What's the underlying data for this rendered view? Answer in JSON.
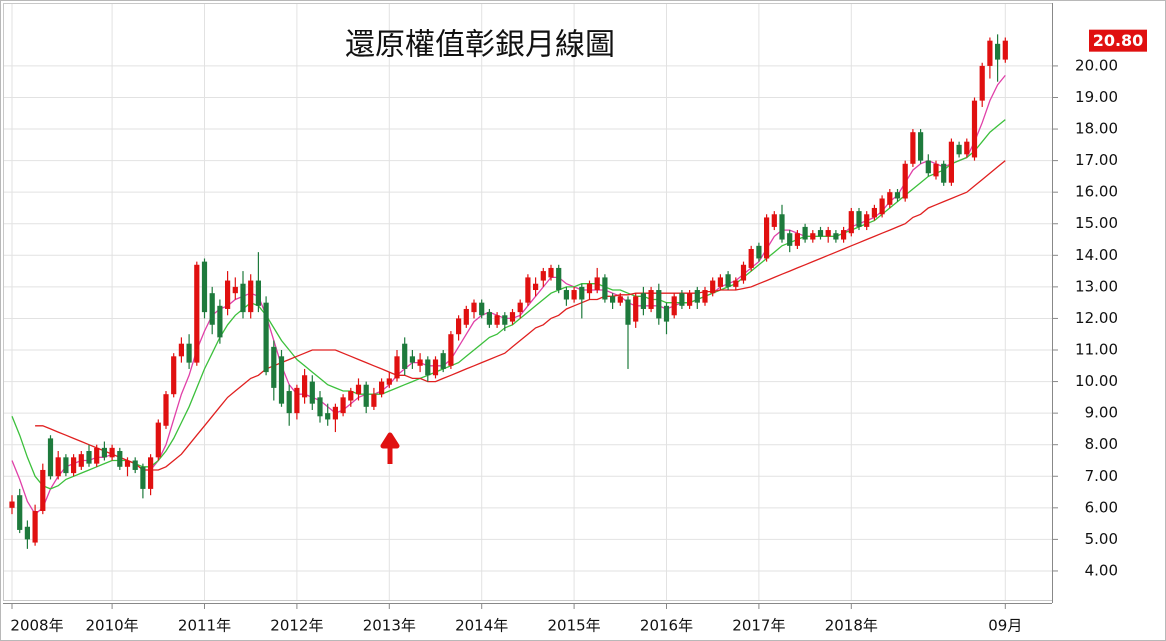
{
  "chart_data": {
    "type": "candlestick",
    "title": "還原權值彰銀月線圖",
    "categories": [
      "2008年",
      null,
      null,
      null,
      null,
      null,
      null,
      null,
      null,
      null,
      null,
      null,
      null,
      "2010年",
      null,
      null,
      null,
      null,
      null,
      null,
      null,
      null,
      null,
      null,
      null,
      "2011年",
      null,
      null,
      null,
      null,
      null,
      null,
      null,
      null,
      null,
      null,
      null,
      "2012年",
      null,
      null,
      null,
      null,
      null,
      null,
      null,
      null,
      null,
      null,
      null,
      "2013年",
      null,
      null,
      null,
      null,
      null,
      null,
      null,
      null,
      null,
      null,
      null,
      "2014年",
      null,
      null,
      null,
      null,
      null,
      null,
      null,
      null,
      null,
      null,
      null,
      "2015年",
      null,
      null,
      null,
      null,
      null,
      null,
      null,
      null,
      null,
      null,
      null,
      "2016年",
      null,
      null,
      null,
      null,
      null,
      null,
      null,
      null,
      null,
      null,
      null,
      "2017年",
      null,
      null,
      null,
      null,
      null,
      null,
      null,
      null,
      null,
      null,
      null,
      "2018年",
      null,
      null,
      null,
      null,
      null,
      null,
      null,
      null,
      null,
      null,
      null,
      null,
      null,
      null,
      null,
      null,
      null,
      null,
      null,
      "09月"
    ],
    "open": [
      6.0,
      6.4,
      5.4,
      4.9,
      5.9,
      8.2,
      7.0,
      7.6,
      7.1,
      7.3,
      7.8,
      7.4,
      7.9,
      7.6,
      7.8,
      7.3,
      7.5,
      7.3,
      6.6,
      7.6,
      8.6,
      9.6,
      10.8,
      11.2,
      10.6,
      13.8,
      12.8,
      12.4,
      12.3,
      12.8,
      13.1,
      12.2,
      13.2,
      12.5,
      11.1,
      10.8,
      9.7,
      9.0,
      9.5,
      10.0,
      9.5,
      9.0,
      8.8,
      9.0,
      9.4,
      9.6,
      9.9,
      9.2,
      9.6,
      9.9,
      10.1,
      11.2,
      10.8,
      10.5,
      10.7,
      10.2,
      10.9,
      10.5,
      11.5,
      11.8,
      12.2,
      12.5,
      12.2,
      11.8,
      12.1,
      11.9,
      12.2,
      12.5,
      12.9,
      13.2,
      13.3,
      13.6,
      12.9,
      12.6,
      13.0,
      12.8,
      12.9,
      13.3,
      12.7,
      12.5,
      12.6,
      11.9,
      12.8,
      12.3,
      12.9,
      12.4,
      12.1,
      12.8,
      12.4,
      12.9,
      12.5,
      12.8,
      13.0,
      13.4,
      13.0,
      13.2,
      13.6,
      14.3,
      13.9,
      14.9,
      15.3,
      14.7,
      14.3,
      14.9,
      14.5,
      14.8,
      14.6,
      14.7,
      14.5,
      14.7,
      15.4,
      14.9,
      15.2,
      15.3,
      15.6,
      16.0,
      15.8,
      16.9,
      17.9,
      17.0,
      16.5,
      16.9,
      16.3,
      17.5,
      17.2,
      17.1,
      18.9,
      20.0,
      20.7,
      20.2
    ],
    "high": [
      6.4,
      6.6,
      5.6,
      6.1,
      7.4,
      8.3,
      7.8,
      7.7,
      7.7,
      7.8,
      8.0,
      8.0,
      8.1,
      8.0,
      7.9,
      7.6,
      7.6,
      7.4,
      7.7,
      8.8,
      9.7,
      10.9,
      11.4,
      11.5,
      13.8,
      13.9,
      13.0,
      12.6,
      13.5,
      13.3,
      13.5,
      13.4,
      14.1,
      12.7,
      11.3,
      11.0,
      9.9,
      9.9,
      10.4,
      10.2,
      9.7,
      9.3,
      9.3,
      9.6,
      9.8,
      10.1,
      10.0,
      9.8,
      10.1,
      10.3,
      11.0,
      11.4,
      11.0,
      10.9,
      10.8,
      10.8,
      11.0,
      11.6,
      12.1,
      12.4,
      12.6,
      12.6,
      12.3,
      12.2,
      12.2,
      12.3,
      12.6,
      13.4,
      13.3,
      13.6,
      13.7,
      13.7,
      13.0,
      13.0,
      13.1,
      13.2,
      13.6,
      13.4,
      12.8,
      12.8,
      12.7,
      12.8,
      13.0,
      13.0,
      13.1,
      12.5,
      12.8,
      12.9,
      12.9,
      13.0,
      13.0,
      13.3,
      13.4,
      13.5,
      13.3,
      13.8,
      14.3,
      14.4,
      15.3,
      15.4,
      15.6,
      14.8,
      14.8,
      15.0,
      14.8,
      14.9,
      14.9,
      14.8,
      14.9,
      15.5,
      15.5,
      15.4,
      15.6,
      15.9,
      16.1,
      16.1,
      17.0,
      18.0,
      18.0,
      17.2,
      17.0,
      17.0,
      17.7,
      17.6,
      17.7,
      19.0,
      20.1,
      20.9,
      21.0,
      20.9
    ],
    "low": [
      5.8,
      5.2,
      4.7,
      4.8,
      5.8,
      6.9,
      6.9,
      7.0,
      7.0,
      7.2,
      7.3,
      7.3,
      7.5,
      7.5,
      7.2,
      7.0,
      7.1,
      6.3,
      6.4,
      7.5,
      8.5,
      9.5,
      10.6,
      10.4,
      10.5,
      12.0,
      11.5,
      11.2,
      12.1,
      12.6,
      12.0,
      12.0,
      12.2,
      10.2,
      9.4,
      9.2,
      8.6,
      8.8,
      9.3,
      9.1,
      8.7,
      8.6,
      8.4,
      8.9,
      9.2,
      9.4,
      9.0,
      9.1,
      9.5,
      9.8,
      10.0,
      10.2,
      10.4,
      10.3,
      10.0,
      10.1,
      10.3,
      10.4,
      11.3,
      11.7,
      12.0,
      12.0,
      11.7,
      11.7,
      11.6,
      11.8,
      12.0,
      12.4,
      12.7,
      13.0,
      13.2,
      12.8,
      12.4,
      12.5,
      12.0,
      12.6,
      12.8,
      12.5,
      12.3,
      12.4,
      10.4,
      11.7,
      12.1,
      12.2,
      11.8,
      11.5,
      12.0,
      12.3,
      12.3,
      12.3,
      12.4,
      12.7,
      12.9,
      12.9,
      12.9,
      13.1,
      13.5,
      13.8,
      13.8,
      14.8,
      14.4,
      14.1,
      14.2,
      14.4,
      14.4,
      14.5,
      14.4,
      14.4,
      14.4,
      14.6,
      14.8,
      14.8,
      15.1,
      15.2,
      15.5,
      15.7,
      15.7,
      16.8,
      16.9,
      16.5,
      16.4,
      16.2,
      16.2,
      17.1,
      17.1,
      17.0,
      18.7,
      19.6,
      19.5,
      20.1
    ],
    "close": [
      6.2,
      5.3,
      5.0,
      5.9,
      7.2,
      7.0,
      7.6,
      7.1,
      7.6,
      7.7,
      7.4,
      7.9,
      7.6,
      7.9,
      7.3,
      7.5,
      7.2,
      6.6,
      7.6,
      8.7,
      9.6,
      10.8,
      11.2,
      10.6,
      13.7,
      12.2,
      11.8,
      11.4,
      13.2,
      13.0,
      12.2,
      13.2,
      12.4,
      10.3,
      9.8,
      9.3,
      9.0,
      9.8,
      10.2,
      9.3,
      8.9,
      8.8,
      9.2,
      9.5,
      9.7,
      9.9,
      9.2,
      9.6,
      10.0,
      10.1,
      10.8,
      10.4,
      10.6,
      10.7,
      10.2,
      10.7,
      10.4,
      11.5,
      12.0,
      12.3,
      12.5,
      12.1,
      11.8,
      12.1,
      11.8,
      12.2,
      12.5,
      13.3,
      13.1,
      13.5,
      13.6,
      12.9,
      12.6,
      12.9,
      12.6,
      13.1,
      13.3,
      12.6,
      12.5,
      12.7,
      11.8,
      12.7,
      12.3,
      12.9,
      12.0,
      11.9,
      12.7,
      12.4,
      12.8,
      12.5,
      12.9,
      13.2,
      13.3,
      13.0,
      13.2,
      13.7,
      14.2,
      13.9,
      15.2,
      15.3,
      14.5,
      14.3,
      14.7,
      14.5,
      14.7,
      14.6,
      14.8,
      14.5,
      14.8,
      15.4,
      14.9,
      15.3,
      15.5,
      15.8,
      16.0,
      15.8,
      16.9,
      17.9,
      17.0,
      16.6,
      16.9,
      16.3,
      17.6,
      17.2,
      17.6,
      18.9,
      20.0,
      20.8,
      20.2,
      20.8
    ],
    "up_color": "#e01010",
    "down_color": "#1e7a3c",
    "series": [
      {
        "color": "#e040a8",
        "values": [
          7.5,
          6.9,
          6.2,
          5.8,
          6.0,
          6.6,
          7.0,
          7.3,
          7.4,
          7.5,
          7.5,
          7.6,
          7.6,
          7.7,
          7.6,
          7.5,
          7.4,
          7.2,
          7.2,
          7.5,
          8.0,
          8.8,
          9.6,
          10.2,
          11.0,
          11.6,
          12.1,
          12.3,
          12.4,
          12.6,
          12.7,
          12.8,
          12.7,
          12.1,
          11.3,
          10.5,
          9.9,
          9.6,
          9.6,
          9.5,
          9.4,
          9.2,
          9.0,
          9.1,
          9.3,
          9.5,
          9.6,
          9.6,
          9.7,
          9.9,
          10.2,
          10.4,
          10.6,
          10.6,
          10.5,
          10.5,
          10.5,
          10.7,
          11.1,
          11.5,
          11.9,
          12.1,
          12.2,
          12.1,
          12.0,
          12.0,
          12.1,
          12.4,
          12.7,
          13.0,
          13.3,
          13.3,
          13.1,
          13.0,
          12.9,
          12.9,
          12.9,
          12.9,
          12.8,
          12.7,
          12.5,
          12.4,
          12.4,
          12.4,
          12.4,
          12.3,
          12.4,
          12.5,
          12.5,
          12.6,
          12.7,
          12.8,
          13.0,
          13.1,
          13.2,
          13.4,
          13.6,
          13.8,
          14.2,
          14.6,
          14.8,
          14.8,
          14.7,
          14.6,
          14.6,
          14.6,
          14.6,
          14.6,
          14.7,
          14.9,
          15.0,
          15.1,
          15.2,
          15.4,
          15.7,
          15.9,
          16.3,
          16.7,
          16.9,
          17.0,
          16.9,
          16.8,
          16.9,
          17.0,
          17.1,
          17.6,
          18.2,
          18.9,
          19.4,
          19.7
        ]
      },
      {
        "color": "#3cc03c",
        "values": [
          8.9,
          8.3,
          7.6,
          7.0,
          6.7,
          6.6,
          6.7,
          6.9,
          7.0,
          7.1,
          7.2,
          7.3,
          7.4,
          7.5,
          7.5,
          7.5,
          7.4,
          7.3,
          7.3,
          7.5,
          7.8,
          8.2,
          8.7,
          9.2,
          9.8,
          10.4,
          10.9,
          11.4,
          11.8,
          12.1,
          12.3,
          12.5,
          12.4,
          12.1,
          11.7,
          11.3,
          11.0,
          10.7,
          10.5,
          10.3,
          10.1,
          9.9,
          9.8,
          9.7,
          9.7,
          9.6,
          9.6,
          9.6,
          9.6,
          9.7,
          9.8,
          9.9,
          10.0,
          10.1,
          10.2,
          10.3,
          10.4,
          10.5,
          10.6,
          10.8,
          11.0,
          11.2,
          11.4,
          11.5,
          11.7,
          11.8,
          12.0,
          12.2,
          12.4,
          12.6,
          12.8,
          12.9,
          13.0,
          13.0,
          13.1,
          13.1,
          13.1,
          13.0,
          12.9,
          12.9,
          12.8,
          12.7,
          12.7,
          12.6,
          12.6,
          12.5,
          12.5,
          12.5,
          12.5,
          12.6,
          12.7,
          12.8,
          12.9,
          13.0,
          13.1,
          13.3,
          13.5,
          13.7,
          13.9,
          14.1,
          14.3,
          14.4,
          14.5,
          14.6,
          14.6,
          14.6,
          14.6,
          14.6,
          14.7,
          14.8,
          14.9,
          15.0,
          15.1,
          15.3,
          15.5,
          15.7,
          15.9,
          16.1,
          16.3,
          16.5,
          16.6,
          16.7,
          16.9,
          17.0,
          17.1,
          17.3,
          17.6,
          17.9,
          18.1,
          18.3
        ]
      },
      {
        "color": "#e02020",
        "values": [
          null,
          null,
          null,
          8.6,
          8.6,
          8.5,
          8.4,
          8.3,
          8.2,
          8.1,
          8.0,
          7.9,
          7.8,
          7.7,
          7.6,
          7.5,
          7.4,
          7.2,
          7.2,
          7.2,
          7.3,
          7.5,
          7.7,
          8.0,
          8.3,
          8.6,
          8.9,
          9.2,
          9.5,
          9.7,
          9.9,
          10.1,
          10.2,
          10.4,
          10.5,
          10.6,
          10.7,
          10.8,
          10.9,
          11.0,
          11.0,
          11.0,
          11.0,
          10.9,
          10.8,
          10.7,
          10.6,
          10.5,
          10.4,
          10.3,
          10.2,
          10.2,
          10.1,
          10.1,
          10.0,
          10.0,
          10.1,
          10.2,
          10.3,
          10.4,
          10.5,
          10.6,
          10.7,
          10.8,
          10.9,
          11.1,
          11.3,
          11.5,
          11.7,
          11.8,
          12.0,
          12.1,
          12.3,
          12.4,
          12.5,
          12.6,
          12.6,
          12.7,
          12.7,
          12.75,
          12.75,
          12.8,
          12.8,
          12.8,
          12.8,
          12.8,
          12.8,
          12.8,
          12.8,
          12.8,
          12.85,
          12.85,
          12.9,
          12.9,
          12.9,
          12.95,
          13.0,
          13.1,
          13.2,
          13.3,
          13.4,
          13.5,
          13.6,
          13.7,
          13.8,
          13.9,
          14.0,
          14.1,
          14.2,
          14.3,
          14.4,
          14.5,
          14.6,
          14.7,
          14.8,
          14.9,
          15.0,
          15.2,
          15.3,
          15.5,
          15.6,
          15.7,
          15.8,
          15.9,
          16.0,
          16.2,
          16.4,
          16.6,
          16.8,
          17.0
        ]
      }
    ],
    "ylim": [
      3.08,
      21.93
    ],
    "yticks": [
      {
        "value": 4,
        "label": "4.00"
      },
      {
        "value": 5,
        "label": "5.00"
      },
      {
        "value": 6,
        "label": "6.00"
      },
      {
        "value": 7,
        "label": "7.00"
      },
      {
        "value": 8,
        "label": "8.00"
      },
      {
        "value": 9,
        "label": "9.00"
      },
      {
        "value": 10,
        "label": "10.00"
      },
      {
        "value": 11,
        "label": "11.00"
      },
      {
        "value": 12,
        "label": "12.00"
      },
      {
        "value": 13,
        "label": "13.00"
      },
      {
        "value": 14,
        "label": "14.00"
      },
      {
        "value": 15,
        "label": "15.00"
      },
      {
        "value": 16,
        "label": "16.00"
      },
      {
        "value": 17,
        "label": "17.00"
      },
      {
        "value": 18,
        "label": "18.00"
      },
      {
        "value": 19,
        "label": "19.00"
      },
      {
        "value": 20,
        "label": "20.00"
      }
    ],
    "price_tag": {
      "value": 20.8,
      "label": "20.80"
    },
    "grid": true
  }
}
